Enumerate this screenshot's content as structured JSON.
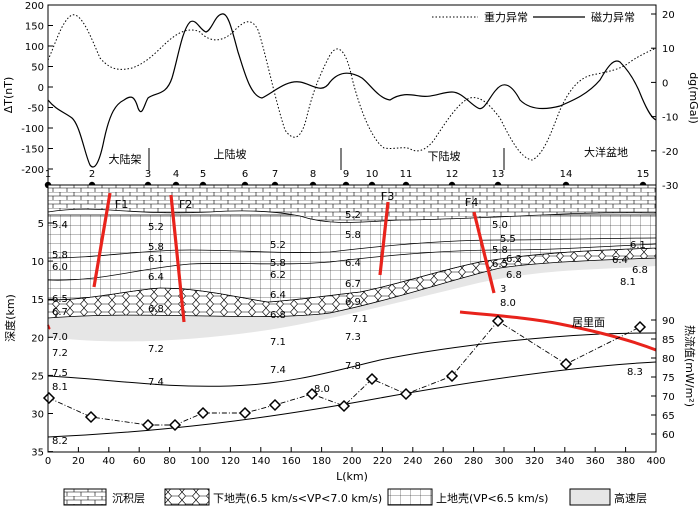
{
  "top_panel": {
    "y_left_label": "ΔT(nT)",
    "y_right_label": "dg(mGal)",
    "y_left_ticks": [
      "200",
      "150",
      "100",
      "50",
      "0",
      "-50",
      "-100",
      "-150",
      "-200"
    ],
    "y_right_ticks": [
      "20",
      "10",
      "0",
      "-10",
      "-20",
      "-30"
    ],
    "legend": {
      "gravity": "重力异常",
      "magnetic": "磁力异常"
    },
    "regions": [
      "大陆架",
      "上陆坡",
      "下陆坡",
      "大洋盆地"
    ],
    "stations": [
      "1",
      "2",
      "3",
      "4",
      "5",
      "6",
      "7",
      "8",
      "9",
      "10",
      "11",
      "12",
      "13",
      "14",
      "15"
    ]
  },
  "bottom_panel": {
    "y_left_label": "深度(km)",
    "y_left_ticks": [
      "5",
      "10",
      "15",
      "20",
      "25",
      "30",
      "35"
    ],
    "y_right_label": "热流值(mW/m²)",
    "y_right_ticks": [
      "90",
      "85",
      "80",
      "75",
      "70",
      "65",
      "60"
    ],
    "x_label": "L(km)",
    "x_ticks": [
      "0",
      "20",
      "40",
      "60",
      "80",
      "100",
      "120",
      "140",
      "160",
      "180",
      "200",
      "220",
      "240",
      "260",
      "280",
      "300",
      "320",
      "340",
      "360",
      "380",
      "400"
    ],
    "faults": [
      "F1",
      "F2",
      "F3",
      "F4"
    ],
    "curie_label": "居里面",
    "velocities": [
      "5.4",
      "5.8",
      "6.0",
      "6.5",
      "6.7",
      "7.0",
      "7.2",
      "7.5",
      "8.1",
      "8.2",
      "5.2",
      "5.8",
      "6.1",
      "6.4",
      "6.8",
      "7.2",
      "7.4",
      "5.2",
      "5.8",
      "6.2",
      "6.4",
      "6.8",
      "7.1",
      "7.4",
      "8.0",
      "5.2",
      "5.8",
      "6.4",
      "6.7",
      "6.9",
      "7.1",
      "7.3",
      "7.8",
      "5.0",
      "5.5",
      "5.8",
      "6.3",
      "6.5",
      "6.8",
      "3",
      "8.0",
      "6.1",
      "6.4",
      "6.8",
      "8.1",
      "8.3"
    ]
  },
  "legend": {
    "sediment": "沉积层",
    "lower_crust": "下地壳(6.5 km/s<VP<7.0 km/s)",
    "upper_crust": "上地壳(VP<6.5 km/s)",
    "high_velocity": "高速层"
  },
  "colors": {
    "fault": "#e8231c",
    "curie": "#e8231c",
    "high_velocity": "#e6e6e6"
  }
}
